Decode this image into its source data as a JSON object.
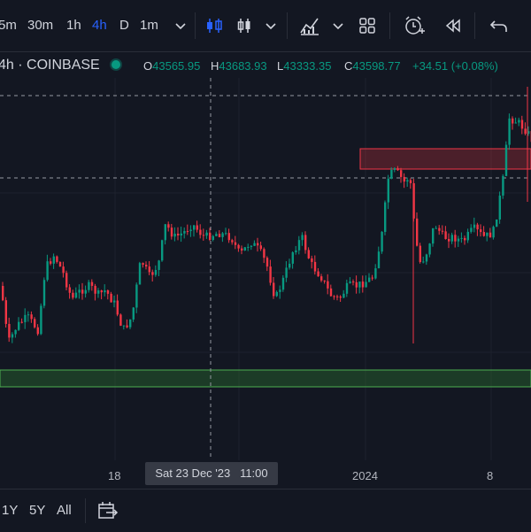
{
  "toolbar": {
    "timeframes": [
      {
        "label": "5m",
        "active": false
      },
      {
        "label": "30m",
        "active": false
      },
      {
        "label": "1h",
        "active": false
      },
      {
        "label": "4h",
        "active": true
      },
      {
        "label": "D",
        "active": false
      },
      {
        "label": "1m",
        "active": false
      }
    ],
    "icons": [
      "chevron-down-icon",
      "candles-icon",
      "bars-icon",
      "chevron-down-icon",
      "indicators-icon",
      "chevron-down-icon",
      "layouts-icon",
      "alert-icon",
      "replay-icon",
      "undo-icon"
    ]
  },
  "legend": {
    "symbol": "4h · COINBASE",
    "open_key": "O",
    "open": "43565.95",
    "high_key": "H",
    "high": "43683.93",
    "low_key": "L",
    "low": "43333.35",
    "close_key": "C",
    "close": "43598.77",
    "change": "+34.51 (+0.08%)"
  },
  "time_axis": {
    "labels": [
      "18",
      "2024",
      "8"
    ],
    "crosshair": "Sat 23 Dec '23   11:00"
  },
  "bottom_bar": {
    "ranges": [
      "1Y",
      "5Y",
      "All"
    ],
    "date_range_icon": "calendar-range-icon"
  },
  "colors": {
    "up": "#089981",
    "down": "#f23645",
    "background": "#131722",
    "resistance_zone": "#f23645",
    "support_zone": "#2e7d32",
    "accent": "#2962ff"
  },
  "chart_data": {
    "type": "candlestick",
    "title": "",
    "xlabel": "",
    "ylabel": "",
    "timeframe": "4h",
    "shapes": [
      {
        "kind": "rectangle",
        "color": "#f23645",
        "role": "resistance-zone"
      },
      {
        "kind": "rectangle",
        "color": "#2e7d32",
        "role": "support-zone"
      }
    ]
  }
}
